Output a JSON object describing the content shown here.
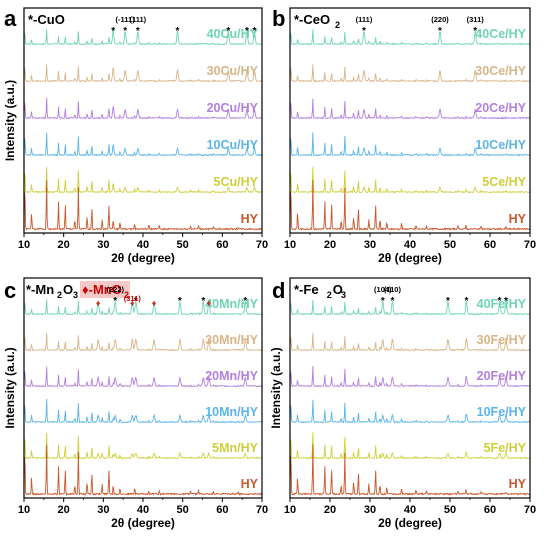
{
  "chart_data": [
    {
      "type": "line",
      "panel": "a",
      "title": "*-CuO",
      "xlabel": "2θ (degree)",
      "ylabel": "Intensity (a.u.)",
      "xlim": [
        10,
        70
      ],
      "xticks": [
        10,
        20,
        30,
        40,
        50,
        60,
        70
      ],
      "peak_labels": [
        {
          "text": "(-111)",
          "x": 35.5
        },
        {
          "text": "(111)",
          "x": 38.7
        }
      ],
      "markers": [
        32.5,
        35.5,
        38.7,
        48.7,
        61.5,
        66.2,
        68.1
      ],
      "series": [
        {
          "name": "40Cu/HY",
          "color": "#6fd4b4"
        },
        {
          "name": "30Cu/HY",
          "color": "#d8b58a"
        },
        {
          "name": "20Cu/HY",
          "color": "#b37fe0"
        },
        {
          "name": "10Cu/HY",
          "color": "#5bb4ea"
        },
        {
          "name": "5Cu/HY",
          "color": "#cfcf3a"
        },
        {
          "name": "HY",
          "color": "#c8582e"
        }
      ]
    },
    {
      "type": "line",
      "panel": "b",
      "title": "*-CeO2",
      "xlabel": "2θ (degree)",
      "ylabel": "",
      "xlim": [
        10,
        70
      ],
      "xticks": [
        10,
        20,
        30,
        40,
        50,
        60,
        70
      ],
      "peak_labels": [
        {
          "text": "(111)",
          "x": 28.5
        },
        {
          "text": "(220)",
          "x": 47.5
        },
        {
          "text": "(311)",
          "x": 56.3
        }
      ],
      "markers": [
        28.5,
        47.5,
        56.3
      ],
      "series": [
        {
          "name": "40Ce/HY",
          "color": "#6fd4b4"
        },
        {
          "name": "30Ce/HY",
          "color": "#d8b58a"
        },
        {
          "name": "20Ce/HY",
          "color": "#b37fe0"
        },
        {
          "name": "10Ce/HY",
          "color": "#5bb4ea"
        },
        {
          "name": "5Ce/HY",
          "color": "#cfcf3a"
        },
        {
          "name": "HY",
          "color": "#c8582e"
        }
      ]
    },
    {
      "type": "line",
      "panel": "c",
      "title": "*-Mn2O3",
      "title2": "♦-MnO2",
      "xlabel": "2θ (degree)",
      "ylabel": "Intensity (a.u.)",
      "xlim": [
        10,
        70
      ],
      "xticks": [
        10,
        20,
        30,
        40,
        50,
        60,
        70
      ],
      "peak_labels": [
        {
          "text": "(222)",
          "x": 33.0,
          "color": "#000000"
        },
        {
          "text": "(311)",
          "x": 37.3,
          "color": "#d00000"
        }
      ],
      "markers": [
        33.0,
        38.2,
        49.3,
        55.2,
        65.8
      ],
      "diamonds": [
        28.7,
        37.3,
        42.8,
        56.6
      ],
      "series": [
        {
          "name": "40Mn/HY",
          "color": "#6fd4b4"
        },
        {
          "name": "30Mn/HY",
          "color": "#d8b58a"
        },
        {
          "name": "20Mn/HY",
          "color": "#b37fe0"
        },
        {
          "name": "10Mn/HY",
          "color": "#5bb4ea"
        },
        {
          "name": "5Mn/HY",
          "color": "#cfcf3a"
        },
        {
          "name": "HY",
          "color": "#c8582e"
        }
      ]
    },
    {
      "type": "line",
      "panel": "d",
      "title": "*-Fe2O3",
      "xlabel": "2θ (degree)",
      "ylabel": "Intensity (a.u.)",
      "xlim": [
        10,
        70
      ],
      "xticks": [
        10,
        20,
        30,
        40,
        50,
        60,
        70
      ],
      "peak_labels": [
        {
          "text": "(104)",
          "x": 33.2
        },
        {
          "text": "(110)",
          "x": 35.6
        }
      ],
      "markers": [
        33.2,
        35.6,
        49.5,
        54.1,
        62.4,
        64.0
      ],
      "series": [
        {
          "name": "40Fe/HY",
          "color": "#6fd4b4"
        },
        {
          "name": "30Fe/HY",
          "color": "#d8b58a"
        },
        {
          "name": "20Fe/HY",
          "color": "#b37fe0"
        },
        {
          "name": "10Fe/HY",
          "color": "#5bb4ea"
        },
        {
          "name": "5Fe/HY",
          "color": "#cfcf3a"
        },
        {
          "name": "HY",
          "color": "#c8582e"
        }
      ]
    }
  ]
}
